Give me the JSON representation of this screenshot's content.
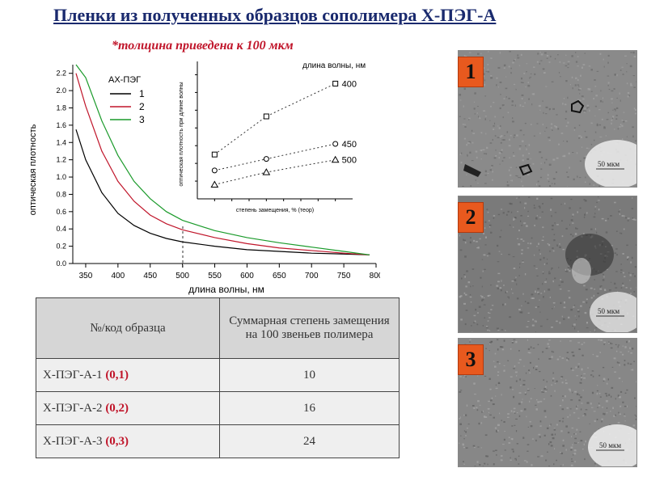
{
  "title": "Пленки из полученных образцов сополимера Х-ПЭГ-А",
  "subtitle": "*толщина приведена к 100 мкм",
  "chart_data": [
    {
      "type": "line",
      "xlabel": "длина волны, нм",
      "ylabel": "оптическая плотность",
      "xlim": [
        330,
        800
      ],
      "ylim": [
        0,
        2.3
      ],
      "x_ticks": [
        "350",
        "400",
        "450",
        "500",
        "550",
        "600",
        "650",
        "700",
        "750",
        "800"
      ],
      "y_ticks": [
        "0.0",
        "0.2",
        "0.4",
        "0.6",
        "0.8",
        "1.0",
        "1.2",
        "1.4",
        "1.6",
        "1.8",
        "2.0",
        "2.2"
      ],
      "legend_title": "АХ-ПЭГ",
      "legend_position": "top-left",
      "series": [
        {
          "name": "1",
          "color": "#000000",
          "x": [
            335,
            350,
            375,
            400,
            425,
            450,
            475,
            500,
            550,
            600,
            650,
            700,
            750,
            790
          ],
          "y": [
            1.55,
            1.2,
            0.82,
            0.58,
            0.44,
            0.35,
            0.29,
            0.25,
            0.2,
            0.16,
            0.14,
            0.12,
            0.11,
            0.1
          ]
        },
        {
          "name": "2",
          "color": "#c0152a",
          "x": [
            335,
            350,
            375,
            400,
            425,
            450,
            475,
            500,
            550,
            600,
            650,
            700,
            750,
            790
          ],
          "y": [
            2.2,
            1.82,
            1.3,
            0.95,
            0.72,
            0.56,
            0.46,
            0.39,
            0.3,
            0.23,
            0.18,
            0.15,
            0.12,
            0.1
          ]
        },
        {
          "name": "3",
          "color": "#1a9a2a",
          "x": [
            335,
            350,
            375,
            400,
            425,
            450,
            475,
            500,
            550,
            600,
            650,
            700,
            750,
            790
          ],
          "y": [
            2.3,
            2.15,
            1.65,
            1.25,
            0.95,
            0.75,
            0.6,
            0.5,
            0.38,
            0.3,
            0.24,
            0.19,
            0.14,
            0.1
          ]
        }
      ]
    },
    {
      "type": "scatter",
      "xlabel": "степень замещения, % (теор)",
      "ylabel": "оптическая плотность при длине волны",
      "legend_title": "длина волны, нм",
      "series": [
        {
          "name": "400",
          "marker": "square",
          "x": [
            10,
            16,
            24
          ],
          "y": [
            0.5,
            0.93,
            1.3
          ]
        },
        {
          "name": "450",
          "marker": "circle",
          "x": [
            10,
            16,
            24
          ],
          "y": [
            0.32,
            0.45,
            0.62
          ]
        },
        {
          "name": "500",
          "marker": "triangle",
          "x": [
            10,
            16,
            24
          ],
          "y": [
            0.16,
            0.3,
            0.44
          ]
        }
      ]
    }
  ],
  "table": {
    "headers": [
      "№/код образца",
      "Суммарная степень замещения на 100 звеньев полимера"
    ],
    "rows": [
      {
        "code": "Х-ПЭГ-А-1",
        "ratio": "(0,1)",
        "value": "10"
      },
      {
        "code": "Х-ПЭГ-А-2",
        "ratio": "(0,2)",
        "value": "16"
      },
      {
        "code": "Х-ПЭГ-А-3",
        "ratio": "(0,3)",
        "value": "24"
      }
    ]
  },
  "micrographs": [
    {
      "badge": "1",
      "scale": "50 мкм"
    },
    {
      "badge": "2",
      "scale": "50 мкм"
    },
    {
      "badge": "3",
      "scale": "50 мкм"
    }
  ]
}
